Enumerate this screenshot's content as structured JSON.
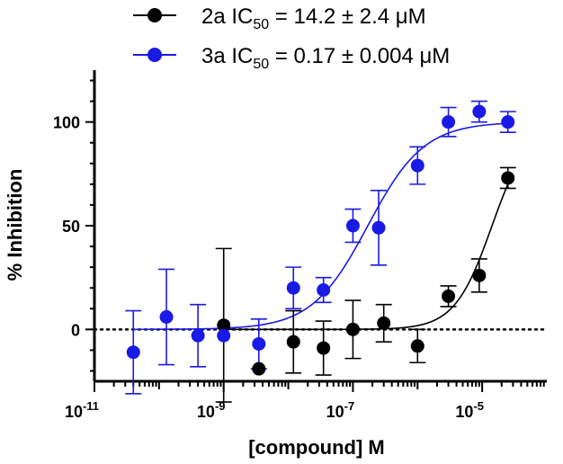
{
  "chart_data": {
    "type": "scatter",
    "title": "",
    "xlabel": "[compound] M",
    "ylabel": "% Inhibition",
    "xscale": "log",
    "xlim": [
      1e-11,
      0.0001
    ],
    "ylim": [
      -25,
      125
    ],
    "x_ticks": [
      {
        "value": 1e-11,
        "base": "10",
        "exp": "-11"
      },
      {
        "value": 1e-09,
        "base": "10",
        "exp": "-9"
      },
      {
        "value": 1e-07,
        "base": "10",
        "exp": "-7"
      },
      {
        "value": 1e-05,
        "base": "10",
        "exp": "-5"
      }
    ],
    "y_ticks": [
      0,
      50,
      100
    ],
    "reference_line": {
      "y": 0,
      "style": "dotted"
    },
    "series": [
      {
        "name": "2a",
        "legend": {
          "prefix": "2a IC",
          "sub": "50",
          "suffix": " = 14.2 ± 2.4 μM"
        },
        "color": "#000000",
        "ic50": 1.42e-05,
        "fit": {
          "bottom": 0,
          "top": 100,
          "hill": 1.5
        },
        "points": [
          {
            "x": 1e-09,
            "y": 2,
            "err": 37
          },
          {
            "x": 3.5e-09,
            "y": -19,
            "err": 0
          },
          {
            "x": 1.2e-08,
            "y": -6,
            "err": 15
          },
          {
            "x": 3.5e-08,
            "y": -9,
            "err": 13
          },
          {
            "x": 1e-07,
            "y": 0,
            "err": 14
          },
          {
            "x": 3e-07,
            "y": 3,
            "err": 9
          },
          {
            "x": 1e-06,
            "y": -8,
            "err": 8
          },
          {
            "x": 3e-06,
            "y": 16,
            "err": 5
          },
          {
            "x": 9e-06,
            "y": 26,
            "err": 8
          },
          {
            "x": 2.5e-05,
            "y": 73,
            "err": 5
          }
        ]
      },
      {
        "name": "3a",
        "legend": {
          "prefix": "3a IC",
          "sub": "50",
          "suffix": " = 0.17 ± 0.004 μM"
        },
        "color": "#1a1ae6",
        "ic50": 1.7e-07,
        "fit": {
          "bottom": 0,
          "top": 100,
          "hill": 1.0
        },
        "points": [
          {
            "x": 4e-11,
            "y": -11,
            "err": 20
          },
          {
            "x": 1.3e-10,
            "y": 6,
            "err": 23
          },
          {
            "x": 4e-10,
            "y": -3,
            "err": 15
          },
          {
            "x": 1e-09,
            "y": -3,
            "err": 0
          },
          {
            "x": 3.5e-09,
            "y": -7,
            "err": 12
          },
          {
            "x": 1.2e-08,
            "y": 20,
            "err": 10
          },
          {
            "x": 3.5e-08,
            "y": 19,
            "err": 6
          },
          {
            "x": 1e-07,
            "y": 50,
            "err": 8
          },
          {
            "x": 2.5e-07,
            "y": 49,
            "err": 18
          },
          {
            "x": 1e-06,
            "y": 79,
            "err": 9
          },
          {
            "x": 3e-06,
            "y": 100,
            "err": 7
          },
          {
            "x": 9e-06,
            "y": 105,
            "err": 5
          },
          {
            "x": 2.5e-05,
            "y": 100,
            "err": 5
          }
        ]
      }
    ]
  }
}
